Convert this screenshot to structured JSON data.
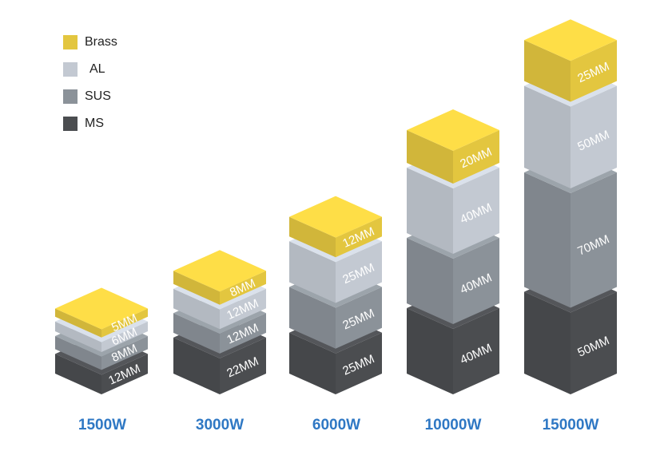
{
  "chart_data": {
    "type": "stacked-isometric-blocks",
    "title": "",
    "legend_placement": "top-left",
    "legend": [
      {
        "name": "Brass",
        "color": "#e3c63f"
      },
      {
        "name": "AL",
        "color": "#c3c9d2"
      },
      {
        "name": "SUS",
        "color": "#8b9299"
      },
      {
        "name": "MS",
        "color": "#4b4d50"
      }
    ],
    "categories": [
      "1500W",
      "3000W",
      "6000W",
      "10000W",
      "15000W"
    ],
    "stacks": [
      {
        "power": "1500W",
        "layers": [
          {
            "material": "MS",
            "thickness_mm": 12,
            "label": "12MM"
          },
          {
            "material": "SUS",
            "thickness_mm": 8,
            "label": "8MM"
          },
          {
            "material": "AL",
            "thickness_mm": 6,
            "label": "6MM"
          },
          {
            "material": "Brass",
            "thickness_mm": 5,
            "label": "5MM"
          }
        ]
      },
      {
        "power": "3000W",
        "layers": [
          {
            "material": "MS",
            "thickness_mm": 22,
            "label": "22MM"
          },
          {
            "material": "SUS",
            "thickness_mm": 12,
            "label": "12MM"
          },
          {
            "material": "AL",
            "thickness_mm": 12,
            "label": "12MM"
          },
          {
            "material": "Brass",
            "thickness_mm": 8,
            "label": "8MM"
          }
        ]
      },
      {
        "power": "6000W",
        "layers": [
          {
            "material": "MS",
            "thickness_mm": 25,
            "label": "25MM"
          },
          {
            "material": "SUS",
            "thickness_mm": 25,
            "label": "25MM"
          },
          {
            "material": "AL",
            "thickness_mm": 25,
            "label": "25MM"
          },
          {
            "material": "Brass",
            "thickness_mm": 12,
            "label": "12MM"
          }
        ]
      },
      {
        "power": "10000W",
        "layers": [
          {
            "material": "MS",
            "thickness_mm": 40,
            "label": "40MM"
          },
          {
            "material": "SUS",
            "thickness_mm": 40,
            "label": "40MM"
          },
          {
            "material": "AL",
            "thickness_mm": 40,
            "label": "40MM"
          },
          {
            "material": "Brass",
            "thickness_mm": 20,
            "label": "20MM"
          }
        ]
      },
      {
        "power": "15000W",
        "layers": [
          {
            "material": "MS",
            "thickness_mm": 50,
            "label": "50MM"
          },
          {
            "material": "SUS",
            "thickness_mm": 70,
            "label": "70MM"
          },
          {
            "material": "AL",
            "thickness_mm": 50,
            "label": "50MM"
          },
          {
            "material": "Brass",
            "thickness_mm": 25,
            "label": "25MM"
          }
        ]
      }
    ],
    "colors": {
      "power_label": "#2f78c4",
      "block_label": "#ffffff"
    }
  }
}
